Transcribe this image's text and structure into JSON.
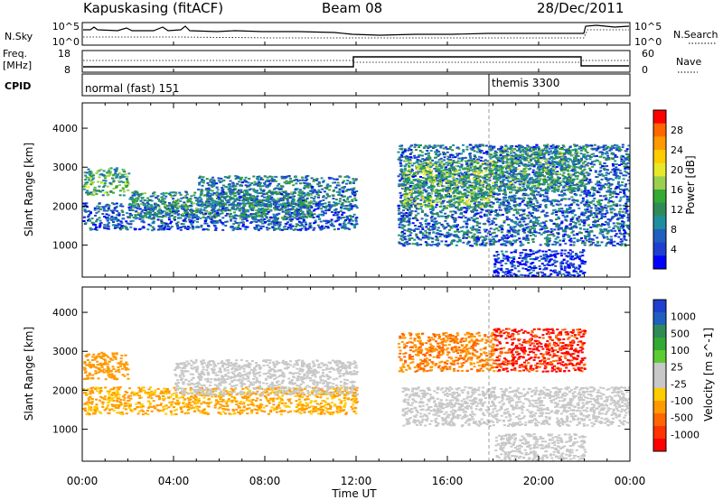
{
  "header": {
    "site": "Kapuskasing (fitACF)",
    "beam": "Beam 08",
    "date": "28/Dec/2011"
  },
  "time_axis": {
    "label": "Time UT",
    "range_hours": [
      0,
      24
    ],
    "ticks": [
      "00:00",
      "04:00",
      "08:00",
      "12:00",
      "16:00",
      "20:00",
      "00:00"
    ]
  },
  "nsky_panel": {
    "left_label": "N.Sky",
    "left_ticks": [
      "10^5",
      "10^0"
    ],
    "right_label": "N.Search",
    "right_ticks": [
      "10^5",
      "10^0"
    ]
  },
  "freq_panel": {
    "left_label_1": "Freq.",
    "left_label_2": "[MHz]",
    "left_ticks": [
      "18",
      "8"
    ],
    "right_label": "Nave",
    "right_ticks": [
      "60",
      "0"
    ]
  },
  "cpid_panel": {
    "label": "CPID",
    "modes": [
      {
        "name": "normal (fast) 151",
        "start_hour": 0
      },
      {
        "name": "themis 3300",
        "start_hour": 18.1
      }
    ]
  },
  "chart_data": [
    {
      "type": "heatmap",
      "name": "power",
      "ylabel": "Slant Range [km]",
      "yticks": [
        1000,
        2000,
        3000,
        4000
      ],
      "ylim": [
        180,
        4650
      ],
      "xlim": [
        0,
        24
      ],
      "colorbar_label": "Power [dB]",
      "colorbar_ticks": [
        "28",
        "24",
        "20",
        "16",
        "12",
        "8",
        "4"
      ],
      "colorbar_colors": [
        "#ff0000",
        "#ff6600",
        "#ff9900",
        "#ffcc00",
        "#e8e82a",
        "#9bd04e",
        "#33aa33",
        "#2e8b57",
        "#1f8fa0",
        "#1f5fbf",
        "#1e3fd0",
        "#0000ff"
      ],
      "echo_regions": [
        {
          "t_start": 0,
          "t_end": 12.0,
          "r_start": 1400,
          "r_end": 2100,
          "level": 8
        },
        {
          "t_start": 0,
          "t_end": 2.0,
          "r_start": 2300,
          "r_end": 3000,
          "level": 14
        },
        {
          "t_start": 2.0,
          "t_end": 10.0,
          "r_start": 1700,
          "r_end": 2400,
          "level": 12
        },
        {
          "t_start": 5.0,
          "t_end": 12.0,
          "r_start": 2000,
          "r_end": 2800,
          "level": 10
        },
        {
          "t_start": 13.8,
          "t_end": 24,
          "r_start": 1000,
          "r_end": 3600,
          "level": 9
        },
        {
          "t_start": 14.0,
          "t_end": 18.0,
          "r_start": 2000,
          "r_end": 3200,
          "level": 16
        },
        {
          "t_start": 18.0,
          "t_end": 22.0,
          "r_start": 2400,
          "r_end": 3500,
          "level": 14
        },
        {
          "t_start": 18.0,
          "t_end": 22.0,
          "r_start": 200,
          "r_end": 900,
          "level": 5
        }
      ]
    },
    {
      "type": "heatmap",
      "name": "velocity",
      "ylabel": "Slant Range [km]",
      "yticks": [
        1000,
        2000,
        3000,
        4000
      ],
      "ylim": [
        180,
        4650
      ],
      "xlim": [
        0,
        24
      ],
      "colorbar_label": "Velocity [m s^-1]",
      "colorbar_ticks": [
        "1000",
        "500",
        "100",
        "25",
        "-25",
        "-100",
        "-500",
        "-1000"
      ],
      "colorbar_colors": [
        "#1e3fd0",
        "#1f5fbf",
        "#2e8b57",
        "#33aa33",
        "#5ccc33",
        "#c8c8c8",
        "#c8c8c8",
        "#ffcc00",
        "#ff9900",
        "#ff6600",
        "#ff3300",
        "#ff0000"
      ],
      "echo_regions": [
        {
          "t_start": 0,
          "t_end": 12.0,
          "r_start": 1400,
          "r_end": 2100,
          "level": -120
        },
        {
          "t_start": 0,
          "t_end": 2.0,
          "r_start": 2300,
          "r_end": 3000,
          "level": -200
        },
        {
          "t_start": 4.0,
          "t_end": 12.0,
          "r_start": 1900,
          "r_end": 2800,
          "level": 0
        },
        {
          "t_start": 13.8,
          "t_end": 18.0,
          "r_start": 2500,
          "r_end": 3500,
          "level": -300
        },
        {
          "t_start": 14.0,
          "t_end": 24,
          "r_start": 1100,
          "r_end": 2100,
          "level": 0
        },
        {
          "t_start": 18.0,
          "t_end": 22.0,
          "r_start": 2500,
          "r_end": 3600,
          "level": -700
        },
        {
          "t_start": 18.0,
          "t_end": 22.0,
          "r_start": 200,
          "r_end": 900,
          "level": 0
        }
      ]
    }
  ]
}
